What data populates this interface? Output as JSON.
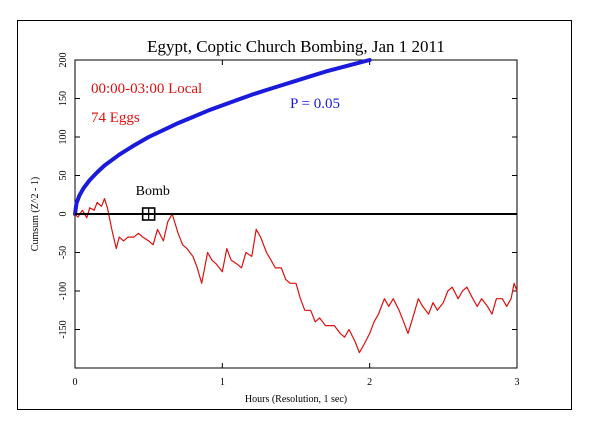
{
  "chart_data": {
    "type": "line",
    "title": "Egypt, Coptic Church Bombing, Jan 1 2011",
    "xlabel": "Hours (Resolution, 1 sec)",
    "ylabel": "Cumsum (Z^2 - 1)",
    "xlim": [
      0,
      3
    ],
    "ylim": [
      -200,
      200
    ],
    "x_ticks": [
      0,
      1,
      2,
      3
    ],
    "x_tick_labels": [
      "0",
      "1",
      "2",
      "3"
    ],
    "y_ticks": [
      -150,
      -100,
      -50,
      0,
      50,
      100,
      150,
      200
    ],
    "y_tick_labels": [
      "-150",
      "-100",
      "-50",
      "0",
      "50",
      "100",
      "150",
      "200"
    ],
    "annotations": {
      "time_window": "00:00-03:00 Local",
      "eggs": "74 Eggs",
      "p_label": "P = 0.05",
      "event_label": "Bomb"
    },
    "event": {
      "x": 0.5,
      "y": 0
    },
    "series": [
      {
        "name": "P = 0.05",
        "color": "#1a1adc",
        "x": [
          0.0,
          0.01,
          0.03,
          0.06,
          0.1,
          0.15,
          0.2,
          0.3,
          0.4,
          0.5,
          0.6,
          0.7,
          0.8,
          0.9,
          1.0,
          1.1,
          1.2,
          1.3,
          1.4,
          1.5,
          1.6,
          1.7,
          1.8,
          1.9,
          2.0
        ],
        "y": [
          0,
          14,
          24,
          34,
          44,
          54,
          63,
          77,
          89,
          100,
          109,
          118,
          126,
          134,
          141,
          148,
          155,
          161,
          167,
          173,
          179,
          185,
          190,
          195,
          200
        ]
      },
      {
        "name": "Cumsum",
        "color": "#e01010",
        "x": [
          0.0,
          0.02,
          0.05,
          0.08,
          0.1,
          0.13,
          0.15,
          0.18,
          0.2,
          0.22,
          0.25,
          0.28,
          0.3,
          0.33,
          0.36,
          0.4,
          0.43,
          0.46,
          0.5,
          0.53,
          0.56,
          0.6,
          0.63,
          0.66,
          0.7,
          0.73,
          0.76,
          0.8,
          0.83,
          0.86,
          0.9,
          0.93,
          0.96,
          1.0,
          1.03,
          1.06,
          1.1,
          1.13,
          1.16,
          1.2,
          1.23,
          1.26,
          1.3,
          1.33,
          1.36,
          1.4,
          1.43,
          1.46,
          1.5,
          1.53,
          1.56,
          1.6,
          1.63,
          1.66,
          1.7,
          1.73,
          1.76,
          1.8,
          1.83,
          1.86,
          1.9,
          1.93,
          1.96,
          2.0,
          2.03,
          2.06,
          2.1,
          2.13,
          2.16,
          2.2,
          2.23,
          2.26,
          2.3,
          2.33,
          2.36,
          2.4,
          2.43,
          2.46,
          2.5,
          2.53,
          2.56,
          2.6,
          2.63,
          2.66,
          2.7,
          2.73,
          2.76,
          2.8,
          2.83,
          2.86,
          2.9,
          2.93,
          2.96,
          2.98,
          3.0
        ],
        "y": [
          0,
          -4,
          5,
          -5,
          8,
          5,
          15,
          10,
          20,
          8,
          -20,
          -45,
          -30,
          -35,
          -30,
          -30,
          -25,
          -30,
          -35,
          -40,
          -20,
          -35,
          -10,
          0,
          -25,
          -40,
          -45,
          -55,
          -70,
          -90,
          -50,
          -60,
          -65,
          -75,
          -45,
          -60,
          -65,
          -70,
          -50,
          -55,
          -20,
          -30,
          -50,
          -60,
          -70,
          -70,
          -85,
          -90,
          -90,
          -110,
          -125,
          -125,
          -140,
          -135,
          -145,
          -145,
          -145,
          -155,
          -160,
          -150,
          -165,
          -180,
          -170,
          -155,
          -140,
          -130,
          -110,
          -120,
          -110,
          -125,
          -140,
          -155,
          -130,
          -110,
          -120,
          -130,
          -115,
          -125,
          -115,
          -100,
          -95,
          -110,
          -100,
          -95,
          -110,
          -120,
          -110,
          -120,
          -130,
          -110,
          -110,
          -120,
          -110,
          -90,
          -100
        ]
      }
    ],
    "grid": false,
    "legend": "none"
  }
}
